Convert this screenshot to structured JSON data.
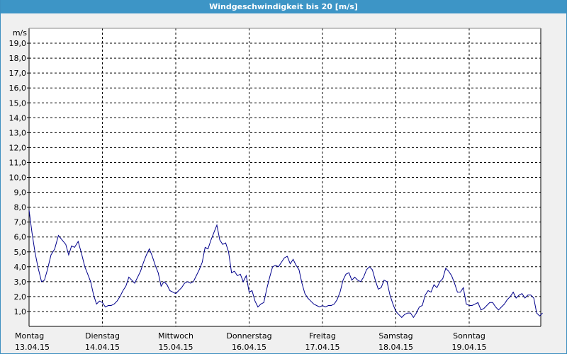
{
  "window": {
    "title": "Windgeschwindigkeit bis 20 [m/s]"
  },
  "colors": {
    "title_bar": "#3d95c6",
    "line": "#00008b",
    "grid": "#000000",
    "plot_background": "#ffffff"
  },
  "chart_data": {
    "type": "line",
    "title": "Windgeschwindigkeit bis 20 [m/s]",
    "ylabel": "m/s",
    "xlabel": "",
    "ylim": [
      0,
      20
    ],
    "xlim": [
      0,
      7
    ],
    "grid": true,
    "grid_style": "dashed",
    "y_ticks": [
      "1,0",
      "2,0",
      "3,0",
      "4,0",
      "5,0",
      "6,0",
      "7,0",
      "8,0",
      "9,0",
      "10,0",
      "11,0",
      "12,0",
      "13,0",
      "14,0",
      "15,0",
      "16,0",
      "17,0",
      "18,0",
      "19,0"
    ],
    "x_ticks": [
      {
        "day": "Montag",
        "date": "13.04.15"
      },
      {
        "day": "Dienstag",
        "date": "14.04.15"
      },
      {
        "day": "Mittwoch",
        "date": "15.04.15"
      },
      {
        "day": "Donnerstag",
        "date": "16.04.15"
      },
      {
        "day": "Freitag",
        "date": "17.04.15"
      },
      {
        "day": "Samstag",
        "date": "18.04.15"
      },
      {
        "day": "Sonntag",
        "date": "19.04.15"
      }
    ],
    "series": [
      {
        "points": [
          [
            0.0,
            7.8
          ],
          [
            0.04,
            6.3
          ],
          [
            0.08,
            5.0
          ],
          [
            0.12,
            4.0
          ],
          [
            0.17,
            3.0
          ],
          [
            0.21,
            3.1
          ],
          [
            0.25,
            3.8
          ],
          [
            0.3,
            4.8
          ],
          [
            0.35,
            5.2
          ],
          [
            0.4,
            6.1
          ],
          [
            0.45,
            5.8
          ],
          [
            0.5,
            5.5
          ],
          [
            0.54,
            4.8
          ],
          [
            0.58,
            5.4
          ],
          [
            0.62,
            5.3
          ],
          [
            0.67,
            5.7
          ],
          [
            0.72,
            4.8
          ],
          [
            0.76,
            4.0
          ],
          [
            0.8,
            3.5
          ],
          [
            0.84,
            3.0
          ],
          [
            0.88,
            2.1
          ],
          [
            0.92,
            1.5
          ],
          [
            0.96,
            1.7
          ],
          [
            1.0,
            1.6
          ],
          [
            1.04,
            1.3
          ],
          [
            1.08,
            1.4
          ],
          [
            1.12,
            1.4
          ],
          [
            1.16,
            1.5
          ],
          [
            1.2,
            1.7
          ],
          [
            1.24,
            2.0
          ],
          [
            1.28,
            2.4
          ],
          [
            1.32,
            2.7
          ],
          [
            1.36,
            3.3
          ],
          [
            1.4,
            3.1
          ],
          [
            1.44,
            2.9
          ],
          [
            1.48,
            3.3
          ],
          [
            1.52,
            3.7
          ],
          [
            1.56,
            4.3
          ],
          [
            1.6,
            4.8
          ],
          [
            1.64,
            5.2
          ],
          [
            1.68,
            4.7
          ],
          [
            1.72,
            4.1
          ],
          [
            1.76,
            3.6
          ],
          [
            1.8,
            2.7
          ],
          [
            1.84,
            3.0
          ],
          [
            1.88,
            2.8
          ],
          [
            1.92,
            2.4
          ],
          [
            1.96,
            2.3
          ],
          [
            2.0,
            2.2
          ],
          [
            2.04,
            2.4
          ],
          [
            2.08,
            2.6
          ],
          [
            2.12,
            2.9
          ],
          [
            2.16,
            3.0
          ],
          [
            2.2,
            2.9
          ],
          [
            2.24,
            3.0
          ],
          [
            2.28,
            3.4
          ],
          [
            2.32,
            3.8
          ],
          [
            2.36,
            4.3
          ],
          [
            2.4,
            5.3
          ],
          [
            2.44,
            5.2
          ],
          [
            2.48,
            5.8
          ],
          [
            2.52,
            6.3
          ],
          [
            2.56,
            6.8
          ],
          [
            2.6,
            5.8
          ],
          [
            2.64,
            5.5
          ],
          [
            2.68,
            5.6
          ],
          [
            2.72,
            5.0
          ],
          [
            2.76,
            3.6
          ],
          [
            2.8,
            3.7
          ],
          [
            2.84,
            3.4
          ],
          [
            2.88,
            3.5
          ],
          [
            2.92,
            3.0
          ],
          [
            2.96,
            3.4
          ],
          [
            3.0,
            2.3
          ],
          [
            3.04,
            2.4
          ],
          [
            3.08,
            1.7
          ],
          [
            3.12,
            1.3
          ],
          [
            3.16,
            1.5
          ],
          [
            3.2,
            1.6
          ],
          [
            3.24,
            2.5
          ],
          [
            3.28,
            3.3
          ],
          [
            3.32,
            4.0
          ],
          [
            3.36,
            4.1
          ],
          [
            3.4,
            4.0
          ],
          [
            3.44,
            4.3
          ],
          [
            3.48,
            4.6
          ],
          [
            3.52,
            4.7
          ],
          [
            3.56,
            4.2
          ],
          [
            3.6,
            4.5
          ],
          [
            3.64,
            4.1
          ],
          [
            3.68,
            3.8
          ],
          [
            3.72,
            2.9
          ],
          [
            3.76,
            2.2
          ],
          [
            3.8,
            1.9
          ],
          [
            3.84,
            1.7
          ],
          [
            3.88,
            1.5
          ],
          [
            3.92,
            1.4
          ],
          [
            3.96,
            1.3
          ],
          [
            4.0,
            1.4
          ],
          [
            4.04,
            1.3
          ],
          [
            4.08,
            1.4
          ],
          [
            4.12,
            1.4
          ],
          [
            4.16,
            1.5
          ],
          [
            4.2,
            1.8
          ],
          [
            4.24,
            2.3
          ],
          [
            4.28,
            3.1
          ],
          [
            4.32,
            3.5
          ],
          [
            4.36,
            3.6
          ],
          [
            4.4,
            3.1
          ],
          [
            4.44,
            3.3
          ],
          [
            4.48,
            3.1
          ],
          [
            4.52,
            3.0
          ],
          [
            4.56,
            3.3
          ],
          [
            4.6,
            3.8
          ],
          [
            4.64,
            4.0
          ],
          [
            4.68,
            3.8
          ],
          [
            4.72,
            3.1
          ],
          [
            4.76,
            2.5
          ],
          [
            4.8,
            2.6
          ],
          [
            4.84,
            3.1
          ],
          [
            4.88,
            3.0
          ],
          [
            4.92,
            2.1
          ],
          [
            4.96,
            1.5
          ],
          [
            5.0,
            1.0
          ],
          [
            5.04,
            0.8
          ],
          [
            5.08,
            0.6
          ],
          [
            5.12,
            0.8
          ],
          [
            5.16,
            0.9
          ],
          [
            5.2,
            0.9
          ],
          [
            5.24,
            0.6
          ],
          [
            5.28,
            0.9
          ],
          [
            5.32,
            1.3
          ],
          [
            5.36,
            1.4
          ],
          [
            5.4,
            2.1
          ],
          [
            5.44,
            2.4
          ],
          [
            5.48,
            2.3
          ],
          [
            5.52,
            2.8
          ],
          [
            5.56,
            2.6
          ],
          [
            5.6,
            3.0
          ],
          [
            5.64,
            3.2
          ],
          [
            5.68,
            3.9
          ],
          [
            5.72,
            3.7
          ],
          [
            5.76,
            3.4
          ],
          [
            5.8,
            2.9
          ],
          [
            5.84,
            2.3
          ],
          [
            5.88,
            2.3
          ],
          [
            5.92,
            2.6
          ],
          [
            5.96,
            1.5
          ],
          [
            6.0,
            1.4
          ],
          [
            6.04,
            1.4
          ],
          [
            6.08,
            1.5
          ],
          [
            6.12,
            1.6
          ],
          [
            6.16,
            1.1
          ],
          [
            6.2,
            1.2
          ],
          [
            6.24,
            1.4
          ],
          [
            6.28,
            1.6
          ],
          [
            6.32,
            1.6
          ],
          [
            6.36,
            1.3
          ],
          [
            6.4,
            1.1
          ],
          [
            6.44,
            1.3
          ],
          [
            6.48,
            1.5
          ],
          [
            6.52,
            1.8
          ],
          [
            6.56,
            2.0
          ],
          [
            6.6,
            2.3
          ],
          [
            6.64,
            1.9
          ],
          [
            6.68,
            2.1
          ],
          [
            6.72,
            2.2
          ],
          [
            6.76,
            1.9
          ],
          [
            6.8,
            2.1
          ],
          [
            6.84,
            2.1
          ],
          [
            6.88,
            1.9
          ],
          [
            6.92,
            0.9
          ],
          [
            6.96,
            0.7
          ],
          [
            7.0,
            0.9
          ]
        ]
      }
    ]
  }
}
